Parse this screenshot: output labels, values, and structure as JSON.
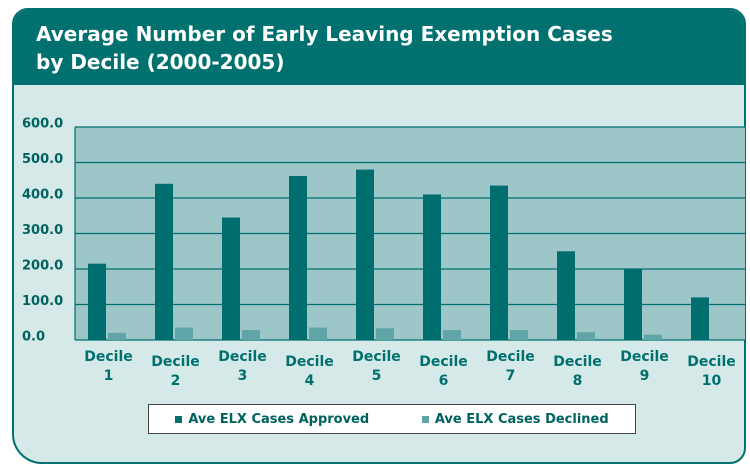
{
  "chart_data": {
    "type": "bar",
    "title": [
      "Average Number of Early Leaving Exemption Cases",
      "by Decile (2000-2005)"
    ],
    "categories": [
      "Decile 1",
      "Decile 2",
      "Decile 3",
      "Decile 4",
      "Decile 5",
      "Decile 6",
      "Decile 7",
      "Decile 8",
      "Decile 9",
      "Decile 10"
    ],
    "series": [
      {
        "name": "Ave ELX Cases Approved",
        "color": "#006d6f",
        "values": [
          215,
          440,
          345,
          462,
          480,
          410,
          435,
          250,
          200,
          120
        ]
      },
      {
        "name": "Ave ELX Cases Declined",
        "color": "#5fa5a8",
        "values": [
          20,
          35,
          28,
          35,
          33,
          28,
          28,
          22,
          15,
          0
        ]
      }
    ],
    "ylim": [
      0,
      600
    ],
    "yticks": [
      {
        "value": 0,
        "label": "0.0"
      },
      {
        "value": 100,
        "label": "100.0"
      },
      {
        "value": 200,
        "label": "200.0"
      },
      {
        "value": 300,
        "label": "300.0"
      },
      {
        "value": 400,
        "label": "400.0"
      },
      {
        "value": 500,
        "label": "500.0"
      },
      {
        "value": 600,
        "label": "600.0"
      }
    ],
    "grid": true,
    "legend": "bottom"
  }
}
